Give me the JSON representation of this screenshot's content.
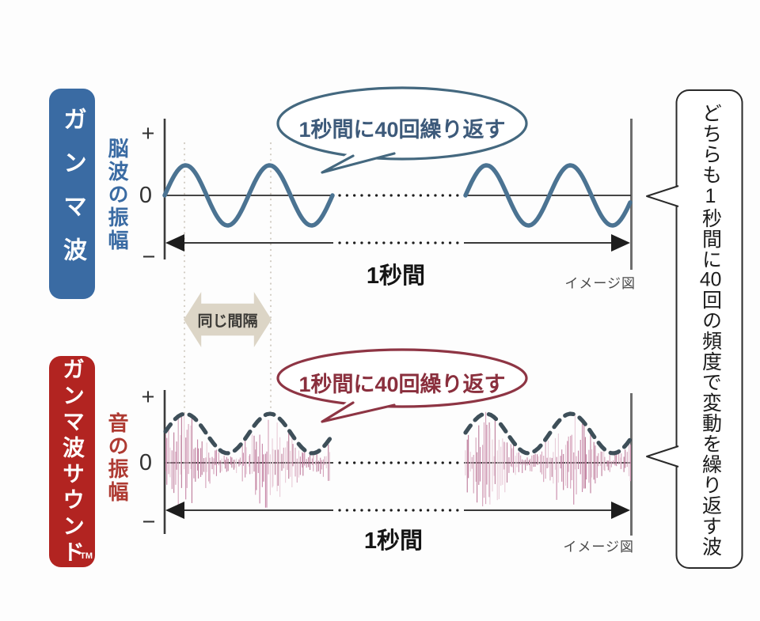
{
  "colors": {
    "accent_blue": "#3a6ba3",
    "accent_red": "#b22421",
    "label_red_text": "#ae3a32",
    "wave_blue": "#4b7392",
    "envelope_dark": "#3e4f59",
    "noise_pinks": [
      "#d6a5bc",
      "#c98bab",
      "#e9cdd9",
      "#bf7f9d"
    ],
    "bubble_top_stroke": "#44687f",
    "bubble_top_text": "#3d5a7a",
    "bubble_bottom_stroke": "#8e3544",
    "bubble_bottom_text": "#8a2f3d",
    "axis_line": "#3c3c3c",
    "line_dark": "#1d1d1d",
    "boundary_gray": "#6e6e6e",
    "guide_dotted": "#d3cec5",
    "interval_bg": "#dcd5c6",
    "interval_text": "#3b3a36",
    "note_border": "#2a2a2a",
    "gray_text": "#4a4a4a"
  },
  "top_chart": {
    "label": "ガンマ波",
    "y_axis_label": "脳波の振幅",
    "axis_plus": "+",
    "axis_zero": "0",
    "axis_minus": "−",
    "bubble": "1秒間に40回繰り返す",
    "duration_label": "1秒間",
    "image_note": "イメージ図"
  },
  "middle": {
    "interval_label": "同じ間隔"
  },
  "bottom_chart": {
    "label": "ガンマ波サウンド",
    "trademark": "TM",
    "y_axis_label": "音の振幅",
    "axis_plus": "+",
    "axis_zero": "0",
    "axis_minus": "−",
    "bubble": "1秒間に40回繰り返す",
    "duration_label": "1秒間",
    "image_note": "イメージ図"
  },
  "side_note": {
    "text": "どちらも1秒間に40回の頻度で変動を繰り返す波"
  },
  "chart_data": {
    "type": "line",
    "title": "",
    "repeats_per_second": 40,
    "series": [
      {
        "name": "ガンマ波（脳波の振幅）",
        "style": "smooth sine wave, 2 cycles shown each side of dotted gap"
      },
      {
        "name": "ガンマ波サウンド（音の振幅）",
        "style": "dense noisy waveform with dashed 40Hz envelope humps"
      }
    ],
    "x_span_label": "1秒間",
    "y_ticks": [
      "+",
      "0",
      "−"
    ]
  }
}
